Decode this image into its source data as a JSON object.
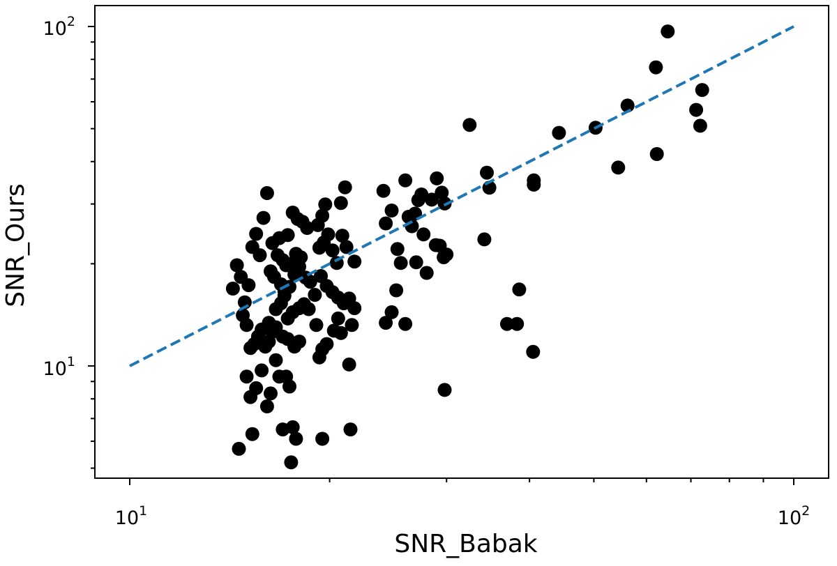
{
  "chart_data": {
    "type": "scatter",
    "title": "",
    "xlabel": "SNR_Babak",
    "ylabel": "SNR_Ours",
    "xscale": "log",
    "yscale": "log",
    "xlim": [
      9.1,
      110.0
    ],
    "ylim": [
      4.6,
      115.0
    ],
    "grid": false,
    "x_ticks": [
      {
        "value": 10,
        "base": "10",
        "exp": "1"
      },
      {
        "value": 100,
        "base": "10",
        "exp": "2"
      }
    ],
    "y_ticks": [
      {
        "value": 10,
        "base": "10",
        "exp": "1"
      },
      {
        "value": 100,
        "base": "10",
        "exp": "2"
      }
    ],
    "marker_color": "#000000",
    "reference_line": {
      "style": "dashed",
      "color": "#1f77b4",
      "points": [
        [
          10,
          10
        ],
        [
          100,
          100
        ]
      ]
    },
    "points": [
      [
        14.3,
        16.9
      ],
      [
        14.5,
        19.8
      ],
      [
        14.7,
        18.3
      ],
      [
        14.9,
        15.4
      ],
      [
        15.1,
        17.3
      ],
      [
        15.3,
        22.4
      ],
      [
        15.5,
        24.5
      ],
      [
        15.7,
        21.2
      ],
      [
        15.9,
        27.3
      ],
      [
        16.1,
        32.3
      ],
      [
        15.0,
        13.2
      ],
      [
        15.2,
        11.3
      ],
      [
        15.4,
        11.6
      ],
      [
        15.6,
        12.2
      ],
      [
        15.8,
        12.8
      ],
      [
        16.0,
        11.4
      ],
      [
        16.2,
        11.8
      ],
      [
        16.4,
        12.6
      ],
      [
        16.6,
        10.4
      ],
      [
        14.8,
        14.1
      ],
      [
        15.0,
        9.3
      ],
      [
        15.2,
        8.1
      ],
      [
        15.5,
        8.6
      ],
      [
        15.8,
        9.7
      ],
      [
        16.1,
        7.6
      ],
      [
        16.3,
        8.3
      ],
      [
        16.8,
        9.3
      ],
      [
        17.2,
        9.3
      ],
      [
        17.4,
        8.7
      ],
      [
        17.0,
        6.5
      ],
      [
        15.3,
        6.3
      ],
      [
        14.6,
        5.7
      ],
      [
        17.6,
        6.6
      ],
      [
        17.8,
        6.1
      ],
      [
        17.5,
        5.2
      ],
      [
        16.6,
        14.7
      ],
      [
        16.9,
        15.3
      ],
      [
        17.1,
        16.1
      ],
      [
        17.4,
        17.1
      ],
      [
        17.7,
        18.6
      ],
      [
        18.0,
        19.6
      ],
      [
        16.4,
        23.0
      ],
      [
        16.8,
        23.8
      ],
      [
        17.3,
        24.3
      ],
      [
        17.6,
        28.3
      ],
      [
        17.9,
        27.1
      ],
      [
        18.2,
        26.6
      ],
      [
        18.5,
        25.5
      ],
      [
        16.7,
        21.2
      ],
      [
        17.0,
        20.5
      ],
      [
        17.2,
        19.8
      ],
      [
        17.5,
        20.0
      ],
      [
        17.8,
        21.4
      ],
      [
        18.1,
        20.9
      ],
      [
        18.4,
        18.2
      ],
      [
        18.7,
        17.7
      ],
      [
        19.0,
        16.2
      ],
      [
        16.3,
        19.0
      ],
      [
        16.5,
        18.3
      ],
      [
        16.9,
        17.4
      ],
      [
        17.1,
        16.6
      ],
      [
        17.3,
        13.8
      ],
      [
        17.6,
        14.4
      ],
      [
        18.0,
        14.8
      ],
      [
        18.3,
        15.2
      ],
      [
        18.6,
        14.7
      ],
      [
        16.2,
        13.4
      ],
      [
        16.6,
        13.0
      ],
      [
        17.0,
        12.2
      ],
      [
        17.3,
        12.0
      ],
      [
        17.7,
        11.4
      ],
      [
        18.0,
        11.8
      ],
      [
        19.3,
        22.3
      ],
      [
        19.6,
        23.1
      ],
      [
        19.9,
        24.4
      ],
      [
        20.2,
        21.9
      ],
      [
        20.5,
        20.1
      ],
      [
        19.2,
        26.0
      ],
      [
        19.5,
        27.7
      ],
      [
        19.7,
        29.9
      ],
      [
        20.8,
        30.2
      ],
      [
        21.1,
        33.6
      ],
      [
        19.4,
        18.4
      ],
      [
        19.8,
        17.2
      ],
      [
        20.2,
        16.5
      ],
      [
        20.6,
        15.9
      ],
      [
        21.0,
        15.3
      ],
      [
        21.4,
        15.8
      ],
      [
        21.8,
        14.8
      ],
      [
        19.1,
        13.2
      ],
      [
        19.5,
        11.2
      ],
      [
        19.8,
        11.6
      ],
      [
        20.3,
        12.7
      ],
      [
        20.8,
        12.5
      ],
      [
        21.6,
        13.2
      ],
      [
        19.3,
        10.6
      ],
      [
        20.6,
        13.8
      ],
      [
        21.4,
        10.1
      ],
      [
        21.5,
        6.5
      ],
      [
        19.5,
        6.1
      ],
      [
        21.8,
        20.3
      ],
      [
        20.9,
        24.2
      ],
      [
        21.2,
        22.4
      ],
      [
        24.1,
        32.8
      ],
      [
        24.3,
        26.3
      ],
      [
        24.8,
        28.7
      ],
      [
        26.0,
        35.2
      ],
      [
        26.3,
        27.5
      ],
      [
        26.6,
        25.8
      ],
      [
        26.9,
        28.1
      ],
      [
        27.2,
        30.8
      ],
      [
        27.5,
        32.0
      ],
      [
        25.3,
        22.1
      ],
      [
        25.6,
        20.1
      ],
      [
        27.0,
        20.2
      ],
      [
        27.7,
        24.4
      ],
      [
        28.0,
        18.8
      ],
      [
        28.5,
        30.9
      ],
      [
        29.0,
        35.7
      ],
      [
        29.5,
        32.4
      ],
      [
        29.8,
        30.1
      ],
      [
        28.9,
        22.7
      ],
      [
        29.3,
        22.6
      ],
      [
        29.7,
        20.9
      ],
      [
        30.0,
        21.3
      ],
      [
        25.2,
        16.7
      ],
      [
        24.8,
        14.4
      ],
      [
        24.3,
        13.4
      ],
      [
        26.0,
        13.3
      ],
      [
        29.8,
        8.5
      ],
      [
        32.5,
        51.3
      ],
      [
        34.2,
        23.6
      ],
      [
        34.5,
        37.1
      ],
      [
        34.8,
        33.5
      ],
      [
        40.6,
        35.2
      ],
      [
        40.6,
        34.2
      ],
      [
        40.5,
        11.0
      ],
      [
        37.0,
        13.3
      ],
      [
        38.3,
        13.3
      ],
      [
        38.6,
        16.8
      ],
      [
        44.3,
        48.6
      ],
      [
        50.3,
        50.3
      ],
      [
        54.4,
        38.4
      ],
      [
        56.2,
        58.5
      ],
      [
        62.0,
        75.8
      ],
      [
        62.2,
        42.1
      ],
      [
        64.6,
        96.7
      ],
      [
        71.3,
        56.8
      ],
      [
        72.3,
        51.0
      ],
      [
        72.8,
        65.0
      ]
    ]
  }
}
